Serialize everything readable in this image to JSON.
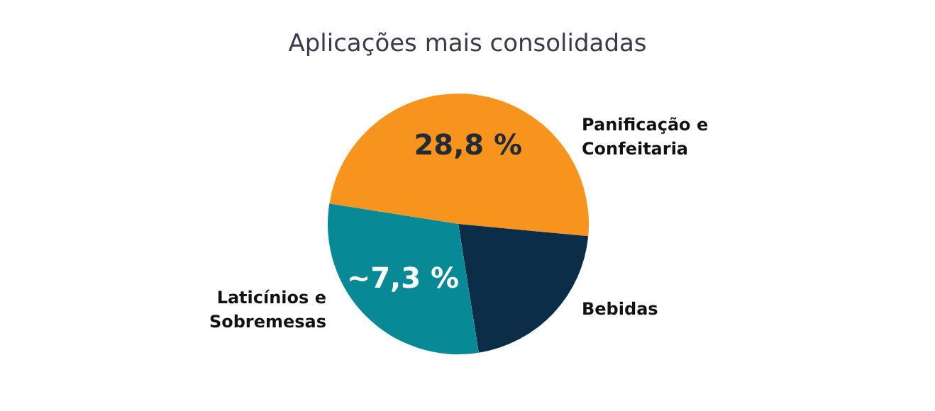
{
  "chart_data": {
    "type": "pie",
    "title": "Aplicações mais consolidadas",
    "categories": [
      "Panificação e\nConfeitaria",
      "Bebidas",
      "Laticínios e\nSobremesas"
    ],
    "values": [
      49,
      21,
      30
    ],
    "colors": [
      "#f7941d",
      "#0b2d48",
      "#088a96"
    ],
    "annotations": [
      "28,8 %",
      "~7,3 %"
    ],
    "legend": false
  }
}
